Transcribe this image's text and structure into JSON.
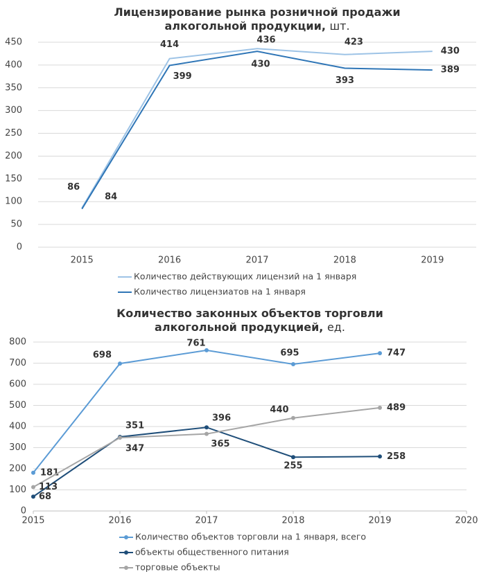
{
  "chart_data": [
    {
      "type": "line",
      "title": [
        "Лицензирование рынка розничной продажи",
        "алкогольной продукции,"
      ],
      "unit": "шт.",
      "categories": [
        "2015",
        "2016",
        "2017",
        "2018",
        "2019"
      ],
      "ylim": [
        0,
        450
      ],
      "yticks": [
        0,
        50,
        100,
        150,
        200,
        250,
        300,
        350,
        400,
        450
      ],
      "grid": true,
      "legend": "bottom",
      "markers": false,
      "series": [
        {
          "name": "Количество действующих лицензий на 1 января",
          "color": "#9dc3e6",
          "values": [
            86,
            414,
            436,
            423,
            430
          ]
        },
        {
          "name": "Количество лицензиатов на 1 января",
          "color": "#2e75b6",
          "values": [
            84,
            399,
            430,
            393,
            389
          ]
        }
      ]
    },
    {
      "type": "line",
      "title": [
        "Количество законных объектов торговли",
        "алкогольной продукцией,"
      ],
      "unit": "ед.",
      "x": [
        2015,
        2016,
        2017,
        2018,
        2019
      ],
      "xlim": [
        2015,
        2020
      ],
      "xticks": [
        2015,
        2016,
        2017,
        2018,
        2019,
        2020
      ],
      "ylim": [
        0,
        800
      ],
      "yticks": [
        0,
        100,
        200,
        300,
        400,
        500,
        600,
        700,
        800
      ],
      "grid": true,
      "legend": "bottom",
      "markers": true,
      "series": [
        {
          "name": "Количество объектов торговли на 1 января, всего",
          "color": "#5b9bd5",
          "values": [
            181,
            698,
            761,
            695,
            747
          ]
        },
        {
          "name": "объекты общественного питания",
          "color": "#1f4e79",
          "values": [
            68,
            351,
            396,
            255,
            258
          ]
        },
        {
          "name": "торговые объекты",
          "color": "#a5a5a5",
          "values": [
            113,
            347,
            365,
            440,
            489
          ]
        }
      ]
    }
  ]
}
